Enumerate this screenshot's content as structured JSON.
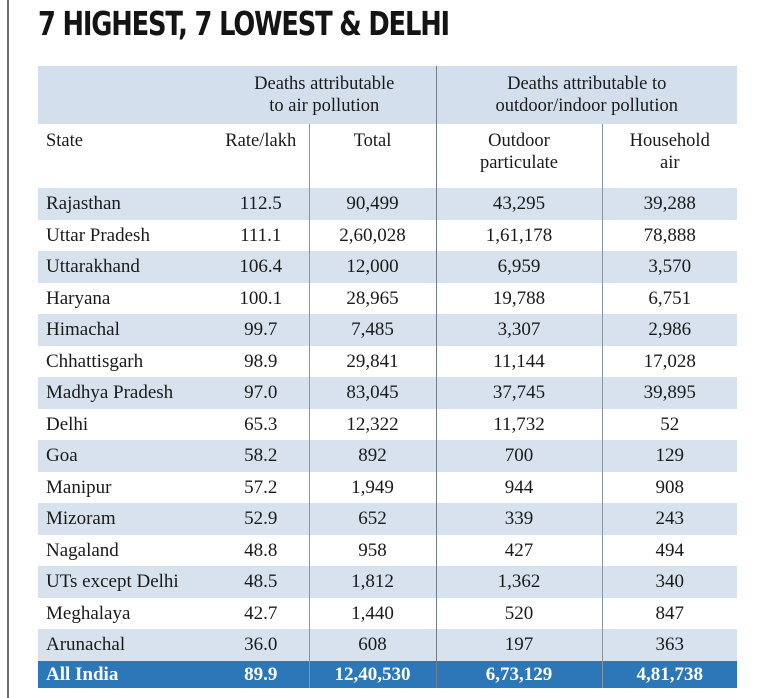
{
  "title": "7 HIGHEST, 7 LOWEST & DELHI",
  "header": {
    "group_air": "Deaths attributable to air pollution",
    "group_air_line1": "Deaths attributable",
    "group_air_line2": "to air pollution",
    "group_split_line1": "Deaths attributable to",
    "group_split_line2": "outdoor/indoor pollution",
    "col_state": "State",
    "col_rate": "Rate/lakh",
    "col_total": "Total",
    "col_outdoor_line1": "Outdoor",
    "col_outdoor_line2": "particulate",
    "col_household_line1": "Household",
    "col_household_line2": "air"
  },
  "rows": [
    {
      "state": "Rajasthan",
      "rate": "112.5",
      "total": "90,499",
      "outdoor": "43,295",
      "household": "39,288"
    },
    {
      "state": "Uttar Pradesh",
      "rate": "111.1",
      "total": "2,60,028",
      "outdoor": "1,61,178",
      "household": "78,888"
    },
    {
      "state": "Uttarakhand",
      "rate": "106.4",
      "total": "12,000",
      "outdoor": "6,959",
      "household": "3,570"
    },
    {
      "state": "Haryana",
      "rate": "100.1",
      "total": "28,965",
      "outdoor": "19,788",
      "household": "6,751"
    },
    {
      "state": "Himachal",
      "rate": "99.7",
      "total": "7,485",
      "outdoor": "3,307",
      "household": "2,986"
    },
    {
      "state": "Chhattisgarh",
      "rate": "98.9",
      "total": "29,841",
      "outdoor": "11,144",
      "household": "17,028"
    },
    {
      "state": "Madhya Pradesh",
      "rate": "97.0",
      "total": "83,045",
      "outdoor": "37,745",
      "household": "39,895"
    },
    {
      "state": "Delhi",
      "rate": "65.3",
      "total": "12,322",
      "outdoor": "11,732",
      "household": "52"
    },
    {
      "state": "Goa",
      "rate": "58.2",
      "total": "892",
      "outdoor": "700",
      "household": "129"
    },
    {
      "state": "Manipur",
      "rate": "57.2",
      "total": "1,949",
      "outdoor": "944",
      "household": "908"
    },
    {
      "state": "Mizoram",
      "rate": "52.9",
      "total": "652",
      "outdoor": "339",
      "household": "243"
    },
    {
      "state": "Nagaland",
      "rate": "48.8",
      "total": "958",
      "outdoor": "427",
      "household": "494"
    },
    {
      "state": "UTs except Delhi",
      "rate": "48.5",
      "total": "1,812",
      "outdoor": "1,362",
      "household": "340"
    },
    {
      "state": "Meghalaya",
      "rate": "42.7",
      "total": "1,440",
      "outdoor": "520",
      "household": "847"
    },
    {
      "state": "Arunachal",
      "rate": "36.0",
      "total": "608",
      "outdoor": "197",
      "household": "363"
    }
  ],
  "total_row": {
    "state": "All India",
    "rate": "89.9",
    "total": "12,40,530",
    "outdoor": "6,73,129",
    "household": "4,81,738"
  },
  "colors": {
    "header_bg": "#d3dfec",
    "stripe_bg": "#d7e2ee",
    "total_bg": "#2c77b8"
  }
}
